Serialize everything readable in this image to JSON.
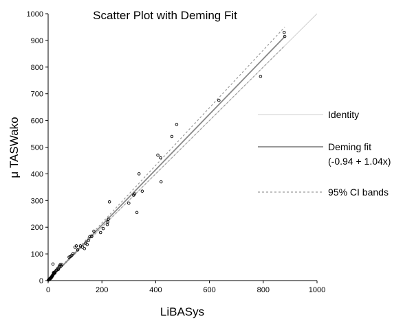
{
  "chart_data": {
    "type": "scatter",
    "title": "Scatter Plot with Deming Fit",
    "xlabel": "LiBASys",
    "ylabel": "μ TASWako",
    "xlim": [
      0,
      1000
    ],
    "ylim": [
      0,
      1000
    ],
    "x_ticks": [
      "0",
      "200",
      "400",
      "600",
      "800",
      "1000"
    ],
    "y_ticks": [
      "0",
      "100",
      "200",
      "300",
      "400",
      "500",
      "600",
      "700",
      "800",
      "900",
      "1000"
    ],
    "grid": false,
    "legend_position": "right",
    "colors": {
      "identity": "#cfcfcf",
      "deming": "#888888",
      "ci": "#9a9a9a",
      "points": "#000000"
    },
    "legend": [
      {
        "key": "identity",
        "label": "Identity"
      },
      {
        "key": "deming",
        "label": "Deming fit",
        "label2": "(-0.94 + 1.04x)"
      },
      {
        "key": "ci",
        "label": "95% CI bands"
      }
    ],
    "identity": {
      "x": [
        0,
        1000
      ],
      "y": [
        0,
        1000
      ]
    },
    "deming_fit": {
      "intercept": -0.94,
      "slope": 1.04,
      "x_range": [
        0,
        880
      ]
    },
    "ci_bands": {
      "upper": {
        "x": [
          0,
          880
        ],
        "y": [
          0,
          950
        ]
      },
      "lower": {
        "x": [
          0,
          880
        ],
        "y": [
          0,
          880
        ]
      }
    },
    "series": [
      {
        "x": [
          1,
          2,
          3,
          4,
          5,
          6,
          7,
          8,
          9,
          10,
          11,
          12,
          13,
          14,
          15,
          16,
          17,
          18,
          19,
          20,
          22,
          24,
          25,
          27,
          30,
          32,
          35,
          38,
          40,
          42,
          45,
          48,
          50,
          18,
          20,
          78,
          82,
          88,
          92,
          100,
          105,
          110,
          120,
          128,
          135,
          140,
          145,
          150,
          155,
          162,
          170,
          195,
          205,
          220,
          222,
          224,
          228,
          300,
          318,
          322,
          330,
          338,
          350,
          408,
          418,
          420,
          460,
          478,
          635,
          790,
          878,
          880
        ],
        "y": [
          2,
          3,
          4,
          5,
          6,
          5,
          8,
          7,
          10,
          9,
          12,
          11,
          15,
          14,
          18,
          17,
          20,
          22,
          23,
          25,
          28,
          30,
          28,
          35,
          38,
          40,
          45,
          42,
          50,
          55,
          60,
          55,
          60,
          62,
          30,
          88,
          90,
          95,
          100,
          125,
          130,
          115,
          130,
          125,
          120,
          140,
          135,
          150,
          165,
          165,
          185,
          180,
          195,
          210,
          220,
          230,
          295,
          290,
          320,
          325,
          255,
          400,
          335,
          470,
          460,
          370,
          540,
          585,
          675,
          765,
          930,
          915
        ]
      }
    ]
  }
}
